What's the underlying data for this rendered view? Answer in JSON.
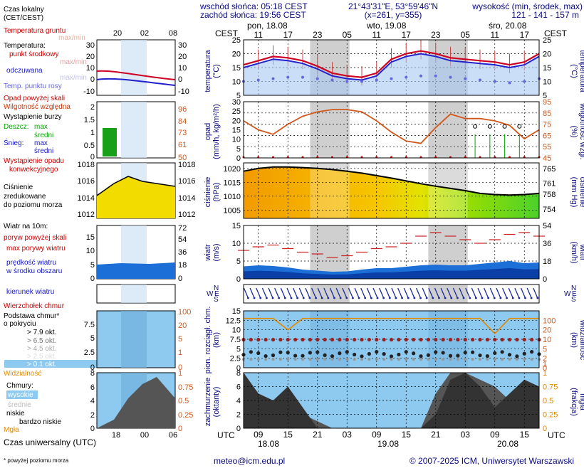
{
  "header": {
    "sunrise": "wschód słońca: 05:18 CEST",
    "sunset": "zachód słońca: 19:56 CEST",
    "coords": "21°43'31\"E, 53°59'46\"N",
    "grid": "(x=261,  y=355)",
    "elev_title": "wysokość (min, środek, max)",
    "elev_values": "121 - 141 - 157 m"
  },
  "footer": {
    "email": "meteo@icm.edu.pl",
    "copyright": "© 2007-2025 ICM, Uniwersytet Warszawski",
    "note": "* powyżej poziomu morza"
  },
  "left_labels": {
    "local_time": "Czas lokalny",
    "local_time2": "(CET/CEST)",
    "ground_temp": "Temperatura gruntu",
    "ground_temp_maxmin": "max/min",
    "temperature": "Temperatura:",
    "midpoint": "punkt środkowy",
    "maxmin": "max/min",
    "feels": "odczuwana",
    "feels_maxmin": "max/min",
    "dew": "Temp. punktu rosy",
    "precip_above": "Opad powyżej skali",
    "humidity": "Wilgotność względna",
    "storm": "Wystąpienie burzy",
    "rain": "Deszcz:",
    "rain_max": "max",
    "rain_mid": "średni",
    "snow": "Śnieg:",
    "snow_max": "max",
    "snow_mid": "średni",
    "conv1": "Wystąpienie opadu",
    "conv2": "konwekcyjnego",
    "pressure1": "Ciśnienie",
    "pressure2": "zredukowane",
    "pressure3": "do poziomu morza",
    "wind": "Wiatr na 10m:",
    "gust_above": "poryw powyżej skali",
    "gust_max": "max porywy wiatru",
    "wind_speed1": "prędkość wiatru",
    "wind_speed2": "w środku obszaru",
    "wind_dir": "kierunek wiatru",
    "cloud_top": "Wierzchołek chmur",
    "cloud_base1": "Podstawa chmur*",
    "cloud_base2": "o pokryciu",
    "okt79": "> 7.9 okt.",
    "okt65": "> 6.5 okt.",
    "okt45": "> 4.5 okt.",
    "okt25": "> 2.5 okt.",
    "okt01": "> 0.1 okt.",
    "visibility": "Widzialność",
    "clouds": "Chmury:",
    "high": "wysokie",
    "mid": "średnie",
    "low": "niskie",
    "verylow": "bardzo niskie",
    "fog": "Mgła",
    "utc_time": "Czas uniwersalny (UTC)"
  },
  "axes": {
    "top_label": "CEST",
    "bottom_label": "UTC",
    "day_labels_top": [
      "pon, 18.08",
      "wto, 19.08",
      "śro, 20.08"
    ],
    "hours_top": [
      "11",
      "17",
      "23",
      "05",
      "11",
      "17",
      "23",
      "05",
      "11",
      "17"
    ],
    "hours_bottom": [
      "09",
      "15",
      "21",
      "03",
      "09",
      "15",
      "21",
      "03",
      "09",
      "15"
    ],
    "day_labels_bottom": [
      "18.08",
      "19.08",
      "20.08"
    ],
    "mini_top_hours": [
      "20",
      "02",
      "08"
    ],
    "mini_bottom_hours": [
      "18",
      "00",
      "06"
    ],
    "panel_titles": {
      "temp_left": "temperatura",
      "temp_left_unit": "(°C)",
      "temp_right": "temperatura",
      "temp_right_unit": "(°C)",
      "precip_left": "opad",
      "precip_left_unit": "(mm/h, kg/m²/h)",
      "precip_right": "wilgotność wzgl.",
      "precip_right_unit": "(%)",
      "press_left": "ciśnienie",
      "press_left_unit": "(hPa)",
      "press_right": "ciśnienie",
      "press_right_unit": "(mm Hg)",
      "wind_left": "wiatr",
      "wind_left_unit": "(m/s)",
      "wind_right": "wiatr",
      "wind_right_unit": "(km/h)",
      "cloud_left1": "pion. rozciągł. chm.",
      "cloud_left2": "(km)",
      "cloud_right1": "widzialność",
      "cloud_right2": "(km)",
      "cov_left1": "zachmurzenie",
      "cov_left2": "(oktanty)",
      "cov_right1": "mgła",
      "cov_right2": "(frakcja)"
    },
    "compass": [
      "N",
      "W",
      "E",
      "S"
    ]
  },
  "colors": {
    "night": "#cfcfcf",
    "temp_mid": "#cc0022",
    "temp_feel": "#2222cc",
    "dew": "#6666dd",
    "humidity": "#d2571a",
    "pressure_line": "#000000",
    "wind_speed": "#1c6fd6",
    "wind_gust": "#cc2222",
    "visibility": "#e08a00",
    "cloud_sky": "#8ec9ef",
    "cloud_dark": "#333333"
  },
  "chart_data": [
    {
      "type": "line",
      "panel": "temperature",
      "ylim": [
        5,
        25
      ],
      "yticks": [
        5,
        10,
        15,
        20,
        25
      ],
      "x_hours_utc": [
        6,
        9,
        12,
        15,
        18,
        21,
        24,
        27,
        30,
        33,
        36,
        39,
        42,
        45,
        48,
        51,
        54,
        57,
        60,
        63,
        66
      ],
      "series": [
        {
          "name": "punkt środkowy",
          "values": [
            16,
            17.5,
            19,
            18.5,
            17.5,
            15.5,
            13,
            12,
            11.5,
            13,
            18,
            20,
            21,
            20,
            18.5,
            18,
            17.5,
            17,
            16,
            17,
            20
          ]
        },
        {
          "name": "odczuwana",
          "values": [
            15,
            16.5,
            18,
            17.5,
            16.5,
            14.5,
            12,
            11,
            10.5,
            12,
            17,
            19,
            20,
            19,
            17.5,
            17,
            16.5,
            16,
            15,
            16,
            19
          ]
        },
        {
          "name": "Temp. punktu rosy",
          "values": [
            10,
            10.5,
            11,
            11.5,
            11.5,
            11,
            10.5,
            10,
            10,
            10.5,
            11,
            11.5,
            12,
            12,
            11.5,
            11,
            10.5,
            10,
            9.5,
            10,
            11
          ]
        }
      ]
    },
    {
      "type": "line",
      "panel": "humidity",
      "ylim": [
        45,
        95
      ],
      "yticks_right": [
        45,
        55,
        65,
        75,
        85,
        95
      ],
      "yticks_left": [
        0,
        5,
        10,
        15,
        20,
        25,
        30
      ],
      "x_hours_utc": [
        6,
        9,
        12,
        15,
        18,
        21,
        24,
        27,
        30,
        33,
        36,
        39,
        42,
        45,
        48,
        51,
        54,
        57,
        60,
        63,
        66
      ],
      "series": [
        {
          "name": "Wilgotność względna",
          "values": [
            78,
            70,
            66,
            75,
            82,
            86,
            88,
            88,
            86,
            78,
            68,
            60,
            58,
            72,
            84,
            80,
            80,
            78,
            74,
            62,
            70
          ]
        }
      ]
    },
    {
      "type": "area",
      "panel": "pressure",
      "ylim": [
        1002,
        1022
      ],
      "yticks_left": [
        1005,
        1010,
        1015,
        1020
      ],
      "yticks_right": [
        754,
        758,
        761,
        765
      ],
      "x_hours_utc": [
        6,
        9,
        12,
        15,
        18,
        21,
        24,
        27,
        30,
        33,
        36,
        39,
        42,
        45,
        48,
        51,
        54,
        57,
        60,
        63,
        66
      ],
      "series": [
        {
          "name": "Ciśnienie",
          "values": [
            1019,
            1020,
            1020.5,
            1020.5,
            1020.3,
            1020,
            1019.6,
            1019,
            1018.3,
            1017.4,
            1016.5,
            1015.5,
            1014.5,
            1013.6,
            1012.8,
            1012,
            1011,
            1010.6,
            1010.4,
            1010.6,
            1011
          ]
        }
      ]
    },
    {
      "type": "area",
      "panel": "wind",
      "ylim": [
        0,
        15
      ],
      "yticks_left": [
        0,
        5,
        10,
        15
      ],
      "yticks_right": [
        0,
        18,
        36,
        54
      ],
      "x_hours_utc": [
        6,
        9,
        12,
        15,
        18,
        21,
        24,
        27,
        30,
        33,
        36,
        39,
        42,
        45,
        48,
        51,
        54,
        57,
        60,
        63,
        66
      ],
      "series": [
        {
          "name": "prędkość wiatru",
          "values": [
            3.5,
            3.8,
            3.6,
            3.2,
            2.6,
            2.3,
            2.0,
            2.1,
            2.6,
            3.0,
            3.0,
            3.4,
            3.8,
            4.0,
            3.8,
            3.8,
            4.2,
            4.6,
            5.0,
            4.4,
            4.6
          ]
        },
        {
          "name": "max porywy wiatru",
          "values": [
            8,
            9,
            9.5,
            8.5,
            7.5,
            7,
            6,
            6.5,
            7.5,
            8.5,
            9,
            10,
            12,
            13,
            12,
            11,
            10,
            11,
            12.5,
            13,
            12
          ]
        }
      ]
    },
    {
      "type": "line",
      "panel": "cloud_visibility",
      "ylim": [
        0,
        15
      ],
      "yticks_left": [
        0,
        2.5,
        5,
        7.5,
        10,
        12.5,
        15
      ],
      "yticks_right": [
        0,
        1,
        2,
        5,
        10,
        20,
        50,
        100
      ],
      "x_hours_utc": [
        6,
        9,
        12,
        15,
        18,
        21,
        24,
        27,
        30,
        33,
        36,
        39,
        42,
        45,
        48,
        51,
        54,
        57,
        60,
        63,
        66
      ],
      "series": [
        {
          "name": "Widzialność",
          "values": [
            13,
            13,
            13,
            10,
            13,
            13,
            13,
            13,
            13,
            13,
            13,
            13,
            13,
            13,
            13,
            13,
            13,
            9,
            13,
            13,
            13
          ]
        }
      ]
    },
    {
      "type": "area",
      "panel": "cloud_cover",
      "ylim": [
        0,
        8
      ],
      "yticks_left": [
        0,
        2,
        4,
        6,
        8
      ],
      "yticks_right": [
        0,
        0.25,
        0.5,
        0.75,
        1
      ],
      "x_hours_utc": [
        6,
        9,
        12,
        15,
        18,
        21,
        24,
        27,
        30,
        33,
        36,
        39,
        42,
        45,
        48,
        51,
        54,
        57,
        60,
        63,
        66
      ],
      "series": [
        {
          "name": "niskie",
          "values": [
            8,
            5,
            4,
            6,
            3,
            0,
            0,
            0,
            0,
            0,
            0,
            0,
            0,
            2,
            7,
            8,
            6,
            3,
            5,
            7,
            6
          ]
        },
        {
          "name": "wysokie",
          "values": [
            0,
            0,
            0,
            1,
            2,
            1,
            0,
            0,
            0,
            0,
            0,
            0,
            0,
            5,
            8,
            8,
            7,
            6,
            4,
            5,
            6
          ]
        }
      ]
    }
  ]
}
